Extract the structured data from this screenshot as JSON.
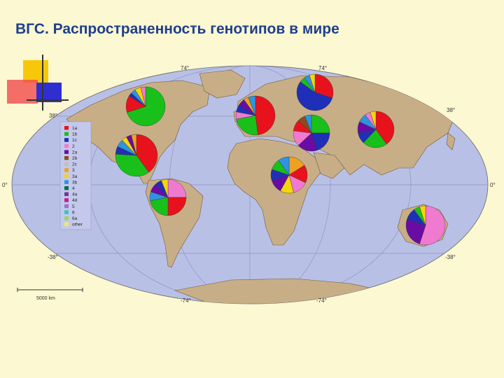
{
  "title": "ВГС. Распространенность генотипов в мире",
  "colors": {
    "background": "#fbf8d2",
    "title": "#1f3f8c",
    "ocean": "#b9c0e6",
    "land": "#c8ae87",
    "land_stroke": "#6e5a3e",
    "graticule": "#8e96c2"
  },
  "coordinates": {
    "lat_north": "38°",
    "lat_south": "-38°",
    "lat_top": "74°",
    "lat_bottom": "-74°",
    "lon_zero": "0°"
  },
  "scale_bar": "5000 km",
  "legend": [
    {
      "label": "1a",
      "color": "#e8121c"
    },
    {
      "label": "1b",
      "color": "#19c019"
    },
    {
      "label": "1c",
      "color": "#1f2fb8"
    },
    {
      "label": "2",
      "color": "#f07ad0"
    },
    {
      "label": "2a",
      "color": "#6a0ca3"
    },
    {
      "label": "2b",
      "color": "#8a4c1a"
    },
    {
      "label": "2c",
      "color": "#bfbfbf"
    },
    {
      "label": "3",
      "color": "#f0a020"
    },
    {
      "label": "3a",
      "color": "#f5d60a"
    },
    {
      "label": "3b",
      "color": "#2f93e0"
    },
    {
      "label": "4",
      "color": "#0d6b50"
    },
    {
      "label": "4a",
      "color": "#6d3d8c"
    },
    {
      "label": "4d",
      "color": "#c21f8f"
    },
    {
      "label": "5",
      "color": "#9b73c7"
    },
    {
      "label": "6",
      "color": "#34c6c6"
    },
    {
      "label": "6a",
      "color": "#9ad46a"
    },
    {
      "label": "other",
      "color": "#f4e95a"
    }
  ],
  "pies": [
    {
      "name": "north-america",
      "slices": [
        {
          "c": "#19c019",
          "v": 70
        },
        {
          "c": "#e8121c",
          "v": 14
        },
        {
          "c": "#1f2fb8",
          "v": 3
        },
        {
          "c": "#2f93e0",
          "v": 4
        },
        {
          "c": "#f5d60a",
          "v": 5
        },
        {
          "c": "#f07ad0",
          "v": 4
        }
      ]
    },
    {
      "name": "usa",
      "slices": [
        {
          "c": "#e8121c",
          "v": 40
        },
        {
          "c": "#19c019",
          "v": 36
        },
        {
          "c": "#1f2fb8",
          "v": 6
        },
        {
          "c": "#2f93e0",
          "v": 6
        },
        {
          "c": "#f5d60a",
          "v": 4
        },
        {
          "c": "#6a0ca3",
          "v": 4
        },
        {
          "c": "#f0a020",
          "v": 4
        }
      ]
    },
    {
      "name": "south-america",
      "slices": [
        {
          "c": "#f07ad0",
          "v": 25
        },
        {
          "c": "#e8121c",
          "v": 25
        },
        {
          "c": "#19c019",
          "v": 22
        },
        {
          "c": "#2f93e0",
          "v": 8
        },
        {
          "c": "#6a0ca3",
          "v": 8
        },
        {
          "c": "#1f2fb8",
          "v": 6
        },
        {
          "c": "#f5d60a",
          "v": 6
        }
      ]
    },
    {
      "name": "western-europe",
      "slices": [
        {
          "c": "#e8121c",
          "v": 48
        },
        {
          "c": "#19c019",
          "v": 24
        },
        {
          "c": "#f07ad0",
          "v": 6
        },
        {
          "c": "#1f2fb8",
          "v": 6
        },
        {
          "c": "#6a0ca3",
          "v": 6
        },
        {
          "c": "#f0a020",
          "v": 4
        },
        {
          "c": "#2f93e0",
          "v": 6
        }
      ]
    },
    {
      "name": "russia",
      "slices": [
        {
          "c": "#e8121c",
          "v": 30
        },
        {
          "c": "#1f2fb8",
          "v": 55
        },
        {
          "c": "#19c019",
          "v": 5
        },
        {
          "c": "#2f93e0",
          "v": 5
        },
        {
          "c": "#f5d60a",
          "v": 5
        }
      ]
    },
    {
      "name": "middle-east",
      "slices": [
        {
          "c": "#19c019",
          "v": 25
        },
        {
          "c": "#1f2fb8",
          "v": 20
        },
        {
          "c": "#6a0ca3",
          "v": 18
        },
        {
          "c": "#f07ad0",
          "v": 14
        },
        {
          "c": "#e8121c",
          "v": 10
        },
        {
          "c": "#8a4c1a",
          "v": 7
        },
        {
          "c": "#2f93e0",
          "v": 6
        }
      ]
    },
    {
      "name": "east-asia",
      "slices": [
        {
          "c": "#e8121c",
          "v": 40
        },
        {
          "c": "#19c019",
          "v": 22
        },
        {
          "c": "#1f2fb8",
          "v": 10
        },
        {
          "c": "#6a0ca3",
          "v": 10
        },
        {
          "c": "#2f93e0",
          "v": 8
        },
        {
          "c": "#f07ad0",
          "v": 5
        },
        {
          "c": "#f5d60a",
          "v": 5
        }
      ]
    },
    {
      "name": "central-africa",
      "slices": [
        {
          "c": "#f0a020",
          "v": 16
        },
        {
          "c": "#e8121c",
          "v": 16
        },
        {
          "c": "#f07ad0",
          "v": 14
        },
        {
          "c": "#f5d60a",
          "v": 12
        },
        {
          "c": "#6a0ca3",
          "v": 12
        },
        {
          "c": "#1f2fb8",
          "v": 10
        },
        {
          "c": "#19c019",
          "v": 10
        },
        {
          "c": "#2f93e0",
          "v": 10
        }
      ]
    },
    {
      "name": "australia",
      "slices": [
        {
          "c": "#f07ad0",
          "v": 55
        },
        {
          "c": "#6a0ca3",
          "v": 25
        },
        {
          "c": "#1f2fb8",
          "v": 10
        },
        {
          "c": "#19c019",
          "v": 5
        },
        {
          "c": "#f5d60a",
          "v": 5
        }
      ]
    }
  ]
}
